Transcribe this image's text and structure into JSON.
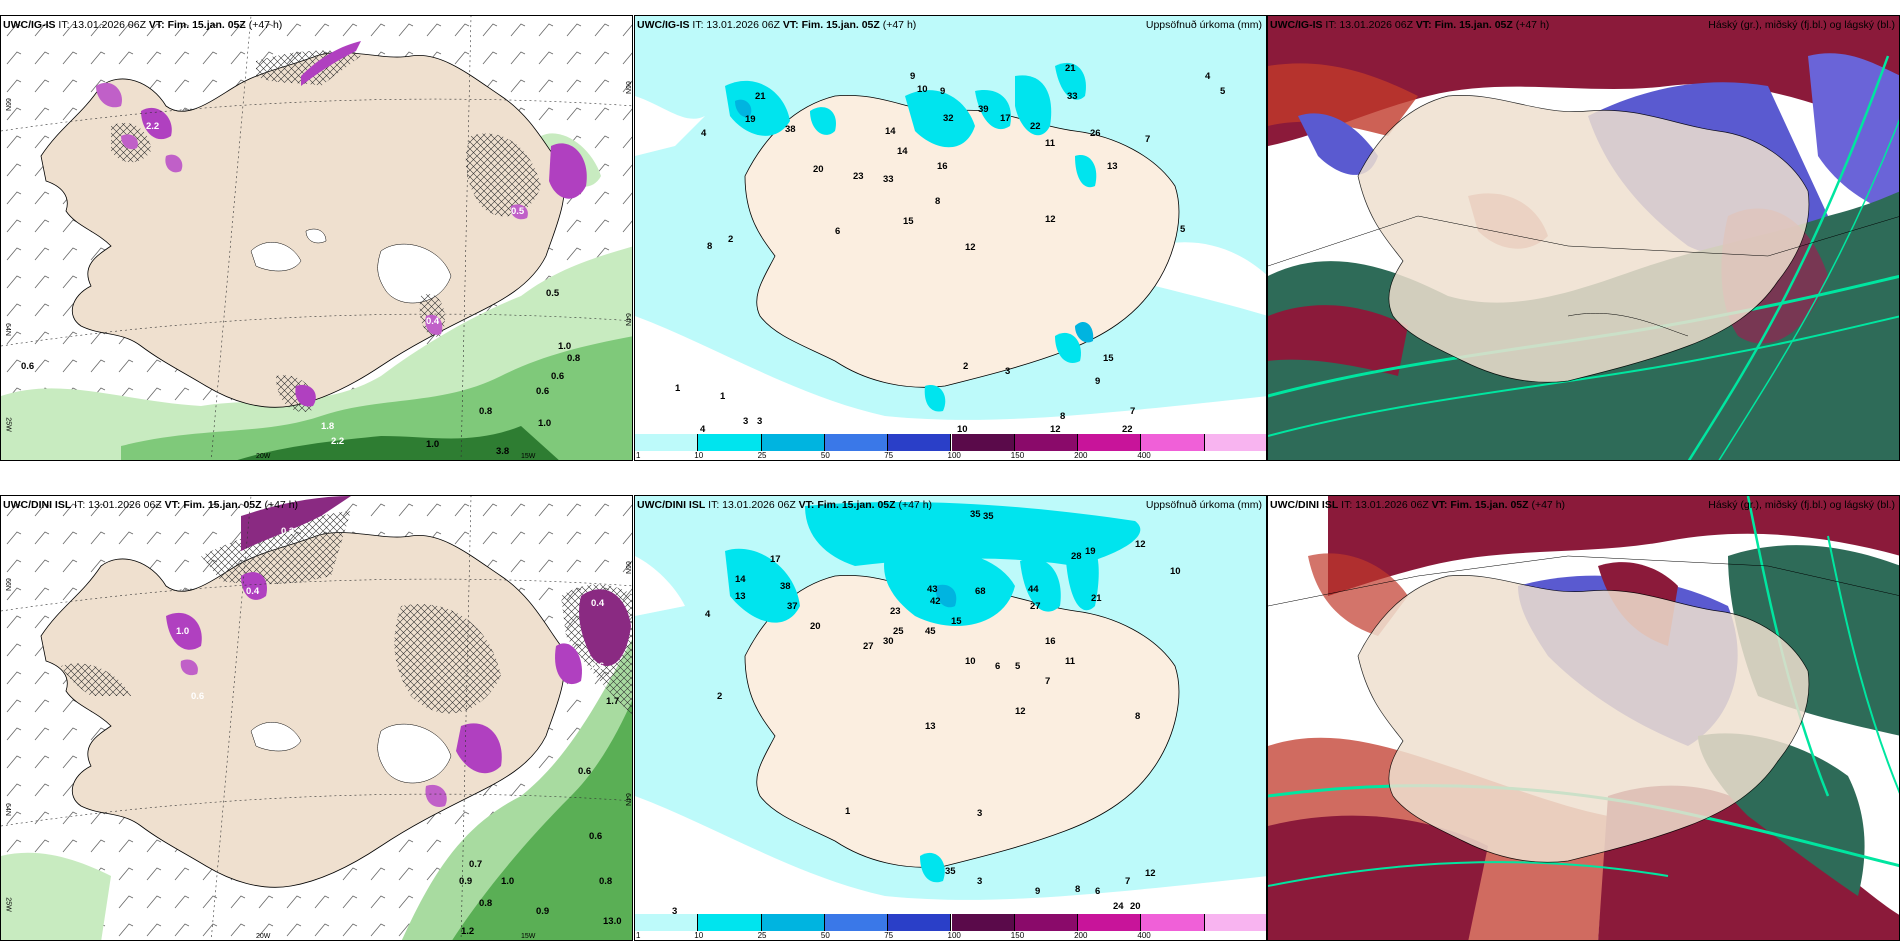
{
  "panels": [
    {
      "model": "UWC/IG-IS",
      "run": "IT: 13.01.2026 06Z",
      "vt_label": "VT:",
      "valid": "Fim. 15.jan. 05Z",
      "lead": "(+47 h)",
      "title_right": "",
      "kind": "wind"
    },
    {
      "model": "UWC/IG-IS",
      "run": "IT: 13.01.2026 06Z",
      "vt_label": "VT:",
      "valid": "Fim. 15.jan. 05Z",
      "lead": "(+47 h)",
      "title_right": "Uppsöfnuð úrkoma (mm)",
      "kind": "precip"
    },
    {
      "model": "UWC/IG-IS",
      "run": "IT: 13.01.2026 06Z",
      "vt_label": "VT:",
      "valid": "Fim. 15.jan. 05Z",
      "lead": "(+47 h)",
      "title_right": "Háský (gr.), miðský (fj.bl.) og lágský (bl.)",
      "kind": "cloud"
    },
    {
      "model": "UWC/DINI ISL",
      "run": "IT: 13.01.2026 06Z",
      "vt_label": "VT:",
      "valid": "Fim. 15.jan. 05Z",
      "lead": "(+47 h)",
      "title_right": "",
      "kind": "wind"
    },
    {
      "model": "UWC/DINI ISL",
      "run": "IT: 13.01.2026 06Z",
      "vt_label": "VT:",
      "valid": "Fim. 15.jan. 05Z",
      "lead": "(+47 h)",
      "title_right": "Uppsöfnuð úrkoma (mm)",
      "kind": "precip"
    },
    {
      "model": "UWC/DINI ISL",
      "run": "IT: 13.01.2026 06Z",
      "vt_label": "VT:",
      "valid": "Fim. 15.jan. 05Z",
      "lead": "(+47 h)",
      "title_right": "Háský (gr.), miðský (fj.bl.) og lágský (bl.)",
      "kind": "cloud"
    }
  ],
  "coords": {
    "lat66": "66N",
    "lat64": "64N",
    "lon20": "20W",
    "lon15": "15W",
    "lon25": "25W",
    "lon10": "10W"
  },
  "colorbar": {
    "ticks": [
      "1",
      "10",
      "25",
      "50",
      "75",
      "100",
      "150",
      "200",
      "400"
    ],
    "colors": [
      "#bdfafa",
      "#00e4ee",
      "#00b4e0",
      "#3a78e8",
      "#2a3fc8",
      "#5a0a4a",
      "#8a0a6a",
      "#c8149a",
      "#f060d8",
      "#f8b4f0"
    ]
  },
  "wind_labels_top": [
    "0.6",
    "0.5",
    "1.0",
    "0.8",
    "0.6",
    "0.8",
    "0.6",
    "1.0",
    "1.0",
    "3.8",
    "2.2",
    "1.8",
    "0.5",
    "2.2",
    "0.4"
  ],
  "wind_labels_bottom": [
    "0.3",
    "0.4",
    "1.0",
    "0.6",
    "0.4",
    "0.6",
    "1.7",
    "0.7",
    "0.9",
    "1.2",
    "0.6",
    "0.8",
    "1.0",
    "0.9",
    "0.6",
    "13.0",
    "0.8"
  ],
  "precip_labels_top": [
    "21",
    "19",
    "38",
    "20",
    "14",
    "32",
    "39",
    "17",
    "23",
    "33",
    "22",
    "14",
    "26",
    "15",
    "13",
    "12",
    "11",
    "12",
    "16",
    "33",
    "21",
    "9",
    "10",
    "9",
    "4",
    "8",
    "7",
    "6",
    "5",
    "3",
    "2",
    "4",
    "8",
    "7",
    "2",
    "8",
    "1",
    "1",
    "3",
    "3",
    "4",
    "10",
    "12",
    "22",
    "9",
    "5",
    "15"
  ],
  "precip_labels_bottom": [
    "35",
    "35",
    "12",
    "17",
    "14",
    "13",
    "38",
    "37",
    "43",
    "42",
    "68",
    "44",
    "27",
    "28",
    "21",
    "23",
    "25",
    "20",
    "30",
    "45",
    "15",
    "16",
    "13",
    "11",
    "12",
    "19",
    "27",
    "10",
    "6",
    "7",
    "8",
    "5",
    "4",
    "3",
    "2",
    "1",
    "3",
    "10",
    "12",
    "24",
    "20",
    "9",
    "8",
    "7",
    "6",
    "3",
    "35"
  ]
}
